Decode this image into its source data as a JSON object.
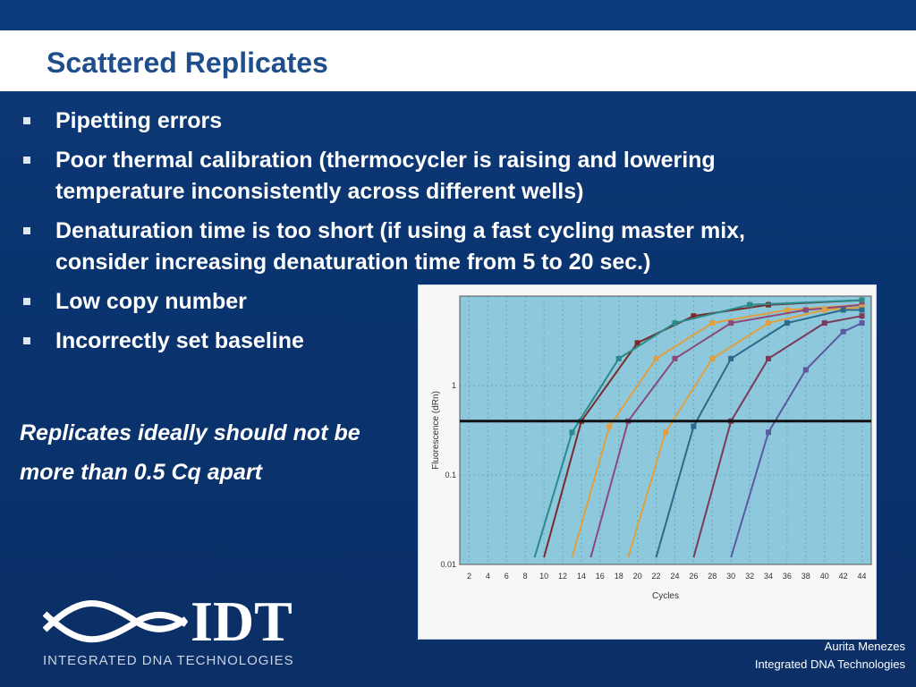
{
  "slide": {
    "title": "Scattered Replicates",
    "bullets": [
      "Pipetting errors",
      "Poor thermal calibration (thermocycler is raising and lowering temperature inconsistently across different wells)",
      "Denaturation time is too short (if using a fast cycling master mix, consider increasing denaturation time from 5 to 20 sec.)",
      "Low copy number",
      "Incorrectly set baseline"
    ],
    "note_line1": "Replicates ideally should not be",
    "note_line2": "more than 0.5 Cq apart"
  },
  "chart_data": {
    "type": "line",
    "xlabel": "Cycles",
    "ylabel": "Fluorescence (dRn)",
    "x_ticks": [
      "2",
      "4",
      "6",
      "8",
      "10",
      "12",
      "14",
      "16",
      "18",
      "20",
      "22",
      "24",
      "26",
      "28",
      "30",
      "32",
      "34",
      "36",
      "38",
      "40",
      "42",
      "44"
    ],
    "y_ticks": [
      "1",
      "0.1",
      "0.01"
    ],
    "y_scale": "log",
    "xlim": [
      1,
      45
    ],
    "ylim": [
      0.01,
      10
    ],
    "threshold": 0.4,
    "grid": true,
    "series": [
      {
        "color": "#7a2a2a",
        "values": [
          [
            14,
            0.4
          ],
          [
            20,
            3
          ],
          [
            26,
            6
          ],
          [
            34,
            8
          ],
          [
            44,
            9
          ]
        ]
      },
      {
        "color": "#2a8a8a",
        "values": [
          [
            13,
            0.3
          ],
          [
            18,
            2
          ],
          [
            24,
            5
          ],
          [
            32,
            8
          ],
          [
            44,
            9
          ]
        ]
      },
      {
        "color": "#e0a040",
        "values": [
          [
            17,
            0.35
          ],
          [
            22,
            2
          ],
          [
            28,
            5
          ],
          [
            36,
            7
          ],
          [
            44,
            8
          ]
        ]
      },
      {
        "color": "#8a4a7a",
        "values": [
          [
            19,
            0.4
          ],
          [
            24,
            2
          ],
          [
            30,
            5
          ],
          [
            38,
            7
          ],
          [
            44,
            8
          ]
        ]
      },
      {
        "color": "#e0a040",
        "values": [
          [
            23,
            0.3
          ],
          [
            28,
            2
          ],
          [
            34,
            5
          ],
          [
            40,
            7
          ],
          [
            44,
            7.5
          ]
        ]
      },
      {
        "color": "#2a6a8a",
        "values": [
          [
            26,
            0.35
          ],
          [
            30,
            2
          ],
          [
            36,
            5
          ],
          [
            42,
            7
          ],
          [
            44,
            7
          ]
        ]
      },
      {
        "color": "#7a3a5a",
        "values": [
          [
            30,
            0.4
          ],
          [
            34,
            2
          ],
          [
            40,
            5
          ],
          [
            44,
            6
          ]
        ]
      },
      {
        "color": "#5a5aa0",
        "values": [
          [
            34,
            0.3
          ],
          [
            38,
            1.5
          ],
          [
            42,
            4
          ],
          [
            44,
            5
          ]
        ]
      }
    ]
  },
  "logo": {
    "mark": "IDT",
    "tagline": "INTEGRATED DNA TECHNOLOGIES"
  },
  "credit": {
    "name": "Aurita Menezes",
    "org": "Integrated DNA Technologies"
  },
  "colors": {
    "background": "#0b3570",
    "title_text": "#1f4e8c",
    "chart_plot_bg": "#8ec8dc"
  }
}
